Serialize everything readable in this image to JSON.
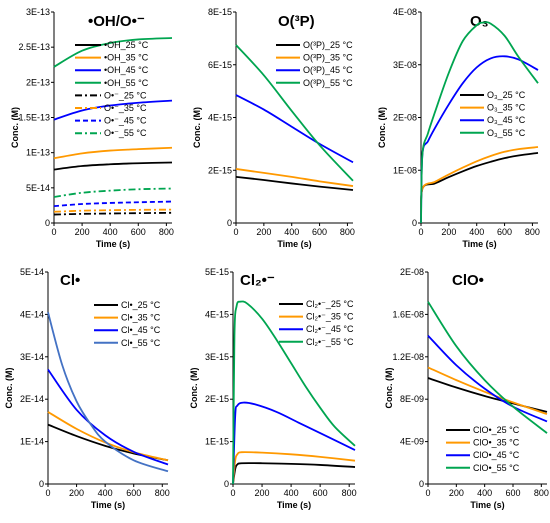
{
  "palette": {
    "c25": "#000000",
    "c35": "#FF9900",
    "c45": "#0000FF",
    "c55": "#00A550",
    "cl55": "#4472C4"
  },
  "chart_data": [
    {
      "id": "oh",
      "type": "line",
      "title": "•OH/O•⁻",
      "xlabel": "Time (s)",
      "ylabel": "Conc. (M)",
      "xlim": [
        0,
        840
      ],
      "ylim": [
        0,
        3e-13
      ],
      "xticks": [
        0,
        200,
        400,
        600,
        800
      ],
      "xtick_labels": [
        "0",
        "200",
        "400",
        "600",
        "800"
      ],
      "yticks": [
        0,
        5e-14,
        1e-13,
        1.5e-13,
        2e-13,
        2.5e-13,
        3e-13
      ],
      "ytick_labels": [
        "0",
        "5E-14",
        "1E-13",
        "1.5E-13",
        "2E-13",
        "2.5E-13",
        "3E-13"
      ],
      "legend_position": "top-center",
      "series": [
        {
          "name": "•OH_25 °C",
          "color": "#000000",
          "dash": "",
          "x": [
            0,
            200,
            400,
            600,
            840
          ],
          "y": [
            7.6e-14,
            8.1e-14,
            8.35e-14,
            8.5e-14,
            8.6e-14
          ]
        },
        {
          "name": "•OH_35 °C",
          "color": "#FF9900",
          "dash": "",
          "x": [
            0,
            200,
            400,
            600,
            840
          ],
          "y": [
            9.2e-14,
            9.9e-14,
            1.03e-13,
            1.05e-13,
            1.07e-13
          ]
        },
        {
          "name": "•OH_45 °C",
          "color": "#0000FF",
          "dash": "",
          "x": [
            0,
            200,
            400,
            600,
            840
          ],
          "y": [
            1.47e-13,
            1.6e-13,
            1.67e-13,
            1.71e-13,
            1.74e-13
          ]
        },
        {
          "name": "•OH_55 °C",
          "color": "#00A550",
          "dash": "",
          "x": [
            0,
            200,
            400,
            600,
            840
          ],
          "y": [
            2.22e-13,
            2.45e-13,
            2.56e-13,
            2.61e-13,
            2.63e-13
          ]
        },
        {
          "name": "O•⁻_25 °C",
          "color": "#000000",
          "dash": "7,3,2,3",
          "x": [
            0,
            200,
            400,
            600,
            840
          ],
          "y": [
            1.2e-14,
            1.3e-14,
            1.35e-14,
            1.4e-14,
            1.45e-14
          ]
        },
        {
          "name": "O•⁻_35 °C",
          "color": "#FF9900",
          "dash": "7,3,2,3",
          "x": [
            0,
            200,
            400,
            600,
            840
          ],
          "y": [
            1.6e-14,
            1.75e-14,
            1.82e-14,
            1.87e-14,
            1.9e-14
          ]
        },
        {
          "name": "O•⁻_45 °C",
          "color": "#0000FF",
          "dash": "5,3",
          "x": [
            0,
            200,
            400,
            600,
            840
          ],
          "y": [
            2.4e-14,
            2.7e-14,
            2.85e-14,
            2.95e-14,
            3.05e-14
          ]
        },
        {
          "name": "O•⁻_55 °C",
          "color": "#00A550",
          "dash": "7,3,2,3",
          "x": [
            0,
            200,
            400,
            600,
            840
          ],
          "y": [
            3.7e-14,
            4.3e-14,
            4.6e-14,
            4.8e-14,
            4.9e-14
          ]
        }
      ]
    },
    {
      "id": "o3p",
      "type": "line",
      "title": "O(³P)",
      "xlabel": "Time (s)",
      "ylabel": "Conc. (M)",
      "xlim": [
        0,
        840
      ],
      "ylim": [
        0,
        8e-15
      ],
      "xticks": [
        0,
        200,
        400,
        600,
        800
      ],
      "xtick_labels": [
        "0",
        "200",
        "400",
        "600",
        "800"
      ],
      "yticks": [
        0,
        2e-15,
        4e-15,
        6e-15,
        8e-15
      ],
      "ytick_labels": [
        "0",
        "2E-15",
        "4E-15",
        "6E-15",
        "8E-15"
      ],
      "legend_position": "top-right",
      "series": [
        {
          "name": "O(³P)_25 °C",
          "color": "#000000",
          "dash": "",
          "x": [
            0,
            200,
            400,
            600,
            840
          ],
          "y": [
            1.75e-15,
            1.63e-15,
            1.5e-15,
            1.38e-15,
            1.25e-15
          ]
        },
        {
          "name": "O(³P)_35 °C",
          "color": "#FF9900",
          "dash": "",
          "x": [
            0,
            200,
            400,
            600,
            840
          ],
          "y": [
            2.05e-15,
            1.9e-15,
            1.75e-15,
            1.58e-15,
            1.4e-15
          ]
        },
        {
          "name": "O(³P)_45 °C",
          "color": "#0000FF",
          "dash": "",
          "x": [
            0,
            200,
            400,
            600,
            840
          ],
          "y": [
            4.85e-15,
            4.3e-15,
            3.65e-15,
            3e-15,
            2.3e-15
          ]
        },
        {
          "name": "O(³P)_55 °C",
          "color": "#00A550",
          "dash": "",
          "x": [
            0,
            200,
            400,
            600,
            840
          ],
          "y": [
            6.75e-15,
            5.6e-15,
            4.25e-15,
            2.95e-15,
            1.6e-15
          ]
        }
      ]
    },
    {
      "id": "o3",
      "type": "line",
      "title": "O₃",
      "xlabel": "Time (s)",
      "ylabel": "Conc. (M)",
      "xlim": [
        0,
        840
      ],
      "ylim": [
        0,
        4e-08
      ],
      "xticks": [
        0,
        200,
        400,
        600,
        800
      ],
      "xtick_labels": [
        "0",
        "200",
        "400",
        "600",
        "800"
      ],
      "yticks": [
        0,
        1e-08,
        2e-08,
        3e-08,
        4e-08
      ],
      "ytick_labels": [
        "0",
        "1E-08",
        "2E-08",
        "3E-08",
        "4E-08"
      ],
      "legend_position": "bottom-right",
      "series": [
        {
          "name": "O₃_25 °C",
          "color": "#000000",
          "dash": "",
          "x": [
            0,
            10,
            100,
            200,
            300,
            400,
            500,
            600,
            700,
            840
          ],
          "y": [
            0,
            6.5e-09,
            7.5e-09,
            8.7e-09,
            9.8e-09,
            1.08e-08,
            1.16e-08,
            1.23e-08,
            1.28e-08,
            1.33e-08
          ]
        },
        {
          "name": "O₃_35 °C",
          "color": "#FF9900",
          "dash": "",
          "x": [
            0,
            10,
            100,
            200,
            300,
            400,
            500,
            600,
            700,
            840
          ],
          "y": [
            0,
            6.5e-09,
            7.8e-09,
            9.2e-09,
            1.05e-08,
            1.17e-08,
            1.27e-08,
            1.35e-08,
            1.4e-08,
            1.44e-08
          ]
        },
        {
          "name": "O₃_45 °C",
          "color": "#0000FF",
          "dash": "",
          "x": [
            0,
            10,
            50,
            100,
            200,
            300,
            400,
            500,
            600,
            700,
            840
          ],
          "y": [
            0,
            1.3e-08,
            1.55e-08,
            1.8e-08,
            2.25e-08,
            2.65e-08,
            2.95e-08,
            3.12e-08,
            3.16e-08,
            3.1e-08,
            2.9e-08
          ]
        },
        {
          "name": "O₃_55 °C",
          "color": "#00A550",
          "dash": "",
          "x": [
            0,
            10,
            50,
            100,
            200,
            300,
            400,
            450,
            500,
            600,
            700,
            840
          ],
          "y": [
            0,
            1.3e-08,
            1.7e-08,
            2.1e-08,
            2.85e-08,
            3.45e-08,
            3.75e-08,
            3.8e-08,
            3.78e-08,
            3.55e-08,
            3.15e-08,
            2.65e-08
          ]
        }
      ]
    },
    {
      "id": "cl",
      "type": "line",
      "title": "Cl•",
      "xlabel": "Time (s)",
      "ylabel": "Conc. (M)",
      "xlim": [
        0,
        840
      ],
      "ylim": [
        0,
        5e-14
      ],
      "xticks": [
        0,
        200,
        400,
        600,
        800
      ],
      "xtick_labels": [
        "0",
        "200",
        "400",
        "600",
        "800"
      ],
      "yticks": [
        0,
        1e-14,
        2e-14,
        3e-14,
        4e-14,
        5e-14
      ],
      "ytick_labels": [
        "0",
        "1E-14",
        "2E-14",
        "3E-14",
        "4E-14",
        "5E-14"
      ],
      "legend_position": "top-right",
      "series": [
        {
          "name": "Cl•_25 °C",
          "color": "#000000",
          "dash": "",
          "x": [
            0,
            200,
            400,
            600,
            840
          ],
          "y": [
            1.4e-14,
            1.13e-14,
            9e-15,
            7.2e-15,
            5.6e-15
          ]
        },
        {
          "name": "Cl•_35 °C",
          "color": "#FF9900",
          "dash": "",
          "x": [
            0,
            200,
            400,
            600,
            840
          ],
          "y": [
            1.7e-14,
            1.3e-14,
            9.8e-15,
            7.5e-15,
            5.6e-15
          ]
        },
        {
          "name": "Cl•_45 °C",
          "color": "#0000FF",
          "dash": "",
          "x": [
            0,
            200,
            400,
            600,
            840
          ],
          "y": [
            2.7e-14,
            1.75e-14,
            1.15e-14,
            7.6e-15,
            4.6e-15
          ]
        },
        {
          "name": "Cl•_55 °C",
          "color": "#4472C4",
          "dash": "",
          "x": [
            0,
            100,
            200,
            300,
            400,
            600,
            840
          ],
          "y": [
            4.05e-14,
            2.8e-14,
            1.95e-14,
            1.4e-14,
            1e-14,
            5.6e-15,
            3e-15
          ]
        }
      ]
    },
    {
      "id": "cl2",
      "type": "line",
      "title": "Cl₂•⁻",
      "xlabel": "Time (s)",
      "ylabel": "Conc. (M)",
      "xlim": [
        0,
        840
      ],
      "ylim": [
        0,
        5e-15
      ],
      "xticks": [
        0,
        200,
        400,
        600,
        800
      ],
      "xtick_labels": [
        "0",
        "200",
        "400",
        "600",
        "800"
      ],
      "yticks": [
        0,
        1e-15,
        2e-15,
        3e-15,
        4e-15,
        5e-15
      ],
      "ytick_labels": [
        "0",
        "1E-15",
        "2E-15",
        "3E-15",
        "4E-15",
        "5E-15"
      ],
      "legend_position": "top-right",
      "series": [
        {
          "name": "Cl₂•⁻_25 °C",
          "color": "#000000",
          "dash": "",
          "x": [
            0,
            15,
            30,
            60,
            200,
            400,
            600,
            840
          ],
          "y": [
            0,
            3.5e-16,
            4.6e-16,
            4.9e-16,
            4.9e-16,
            4.75e-16,
            4.5e-16,
            4e-16
          ]
        },
        {
          "name": "Cl₂•⁻_35 °C",
          "color": "#FF9900",
          "dash": "",
          "x": [
            0,
            15,
            30,
            60,
            200,
            400,
            600,
            840
          ],
          "y": [
            0,
            5.5e-16,
            7e-16,
            7.5e-16,
            7.4e-16,
            7e-16,
            6.4e-16,
            5.5e-16
          ]
        },
        {
          "name": "Cl₂•⁻_45 °C",
          "color": "#0000FF",
          "dash": "",
          "x": [
            0,
            15,
            30,
            70,
            150,
            300,
            450,
            600,
            840
          ],
          "y": [
            0,
            1.6e-15,
            1.85e-15,
            1.92e-15,
            1.88e-15,
            1.7e-15,
            1.45e-15,
            1.2e-15,
            8e-16
          ]
        },
        {
          "name": "Cl₂•⁻_55 °C",
          "color": "#00A550",
          "dash": "",
          "x": [
            0,
            10,
            25,
            50,
            100,
            200,
            300,
            400,
            500,
            600,
            700,
            840
          ],
          "y": [
            0,
            3.5e-15,
            4.2e-15,
            4.3e-15,
            4.25e-15,
            3.9e-15,
            3.4e-15,
            2.85e-15,
            2.3e-15,
            1.8e-15,
            1.35e-15,
            9e-16
          ]
        }
      ]
    },
    {
      "id": "clo",
      "type": "line",
      "title": "ClO•",
      "xlabel": "Time (s)",
      "ylabel": "Conc. (M)",
      "xlim": [
        0,
        840
      ],
      "ylim": [
        0,
        2e-08
      ],
      "xticks": [
        0,
        200,
        400,
        600,
        800
      ],
      "xtick_labels": [
        "0",
        "200",
        "400",
        "600",
        "800"
      ],
      "yticks": [
        0,
        4e-09,
        8e-09,
        1.2e-08,
        1.6e-08,
        2e-08
      ],
      "ytick_labels": [
        "0",
        "4E-09",
        "8E-09",
        "1.2E-08",
        "1.6E-08",
        "2E-08"
      ],
      "legend_position": "bottom-right",
      "series": [
        {
          "name": "ClO•_25 °C",
          "color": "#000000",
          "dash": "",
          "x": [
            0,
            200,
            400,
            600,
            840
          ],
          "y": [
            1e-08,
            9.1e-09,
            8.3e-09,
            7.6e-09,
            6.8e-09
          ]
        },
        {
          "name": "ClO•_35 °C",
          "color": "#FF9900",
          "dash": "",
          "x": [
            0,
            200,
            400,
            600,
            840
          ],
          "y": [
            1.1e-08,
            9.8e-09,
            8.7e-09,
            7.7e-09,
            6.6e-09
          ]
        },
        {
          "name": "ClO•_45 °C",
          "color": "#0000FF",
          "dash": "",
          "x": [
            0,
            200,
            400,
            600,
            840
          ],
          "y": [
            1.4e-08,
            1.12e-08,
            9e-09,
            7.3e-09,
            5.9e-09
          ]
        },
        {
          "name": "ClO•_55 °C",
          "color": "#00A550",
          "dash": "",
          "x": [
            0,
            200,
            400,
            600,
            840
          ],
          "y": [
            1.72e-08,
            1.3e-08,
            9.8e-09,
            7.3e-09,
            4.8e-09
          ]
        }
      ]
    }
  ]
}
